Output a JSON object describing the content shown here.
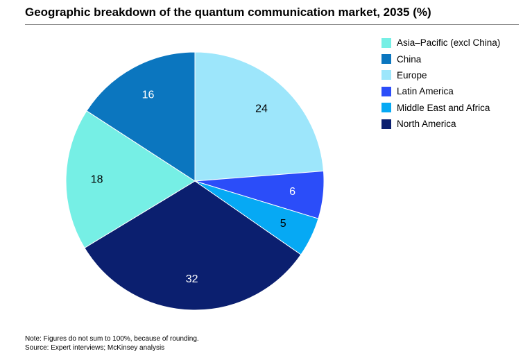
{
  "title": "Geographic breakdown of the quantum communication market, 2035 (%)",
  "chart_data": {
    "type": "pie",
    "title": "Geographic breakdown of the quantum communication market, 2035 (%)",
    "start_angle_deg": 0,
    "direction": "clockwise",
    "slices": [
      {
        "name": "Europe",
        "value": 24,
        "label": "24",
        "color": "#9de6fb",
        "label_color": "#000000"
      },
      {
        "name": "Latin America",
        "value": 6,
        "label": "6",
        "color": "#2b4df9",
        "label_color": "#ffffff"
      },
      {
        "name": "Middle East and Africa",
        "value": 5,
        "label": "5",
        "color": "#06a9f4",
        "label_color": "#000000"
      },
      {
        "name": "North America",
        "value": 32,
        "label": "32",
        "color": "#0b1f6f",
        "label_color": "#ffffff"
      },
      {
        "name": "Asia–Pacific (excl China)",
        "value": 18,
        "label": "18",
        "color": "#76efe5",
        "label_color": "#000000"
      },
      {
        "name": "China",
        "value": 16,
        "label": "16",
        "color": "#0b76bf",
        "label_color": "#ffffff"
      }
    ]
  },
  "legend": [
    {
      "label": "Asia–Pacific (excl China)",
      "color": "#76efe5"
    },
    {
      "label": "China",
      "color": "#0b76bf"
    },
    {
      "label": "Europe",
      "color": "#9de6fb"
    },
    {
      "label": "Latin America",
      "color": "#2b4df9"
    },
    {
      "label": "Middle East and Africa",
      "color": "#06a9f4"
    },
    {
      "label": "North America",
      "color": "#0b1f6f"
    }
  ],
  "note": "Note: Figures do not sum to 100%, because of rounding.",
  "source": "Source: Expert interviews; McKinsey analysis"
}
